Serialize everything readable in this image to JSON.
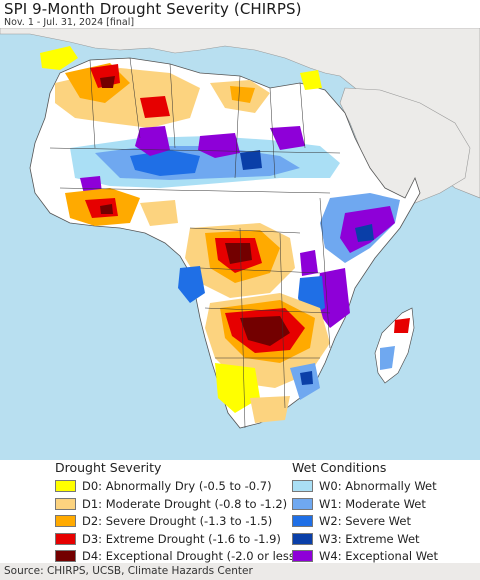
{
  "title": "SPI 9-Month Drought Severity (CHIRPS)",
  "subtitle": "Nov. 1 - Jul. 31, 2024 [final]",
  "legend": {
    "drought_heading": "Drought Severity",
    "drought_items": [
      {
        "label": "D0: Abnormally Dry (-0.5 to -0.7)",
        "color": "#ffff00"
      },
      {
        "label": "D1: Moderate Drought (-0.8 to -1.2)",
        "color": "#fcd37f"
      },
      {
        "label": "D2: Severe Drought (-1.3 to -1.5)",
        "color": "#ffaa00"
      },
      {
        "label": "D3: Extreme Drought (-1.6 to -1.9)",
        "color": "#e60000"
      },
      {
        "label": "D4: Exceptional Drought (-2.0 or less)",
        "color": "#730000"
      }
    ],
    "wet_heading": "Wet Conditions",
    "wet_items": [
      {
        "label": "W0: Abnormally Wet",
        "color": "#aadff5"
      },
      {
        "label": "W1: Moderate Wet",
        "color": "#6fa8f0"
      },
      {
        "label": "W2: Severe Wet",
        "color": "#1f6fe6"
      },
      {
        "label": "W3: Extreme Wet",
        "color": "#0a3fa8"
      },
      {
        "label": "W4: Exceptional Wet",
        "color": "#8e00d8"
      }
    ]
  },
  "footer": "Source: CHIRPS, UCSB, Climate Hazards Center",
  "colors": {
    "ocean": "#b8dff0",
    "land_outside": "#ecebe9",
    "land_normal": "#ffffff"
  }
}
